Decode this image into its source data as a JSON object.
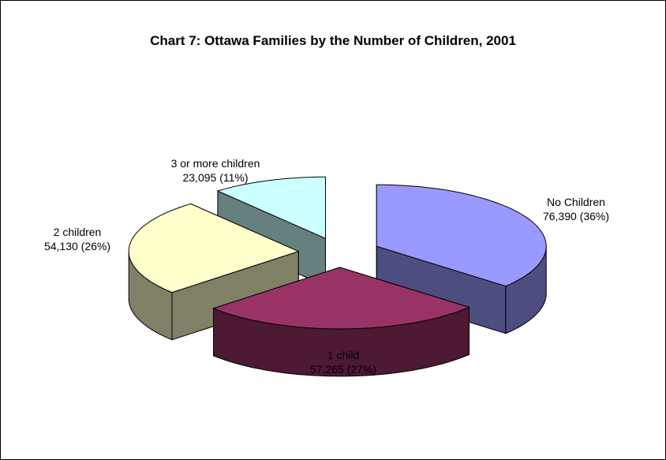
{
  "chart_data": {
    "type": "pie",
    "title": "Chart 7:  Ottawa Families by the Number of Children, 2001",
    "slices": [
      {
        "label": "No Children",
        "value": 76390,
        "value_text": "76,390 (36%)",
        "percent": 36,
        "color": "#9999FF",
        "side_color": "#4D4D80"
      },
      {
        "label": "1 child",
        "value": 57265,
        "value_text": "57,265 (27%)",
        "percent": 27,
        "color": "#993366",
        "side_color": "#4D1933"
      },
      {
        "label": "2 children",
        "value": 54130,
        "value_text": "54,130 (26%)",
        "percent": 26,
        "color": "#FFFFCC",
        "side_color": "#808066"
      },
      {
        "label": "3 or more children",
        "value": 23095,
        "value_text": "23,095 (11%)",
        "percent": 11,
        "color": "#CCFFFF",
        "side_color": "#668080"
      }
    ],
    "legend": "none",
    "style": "3d-exploded"
  }
}
